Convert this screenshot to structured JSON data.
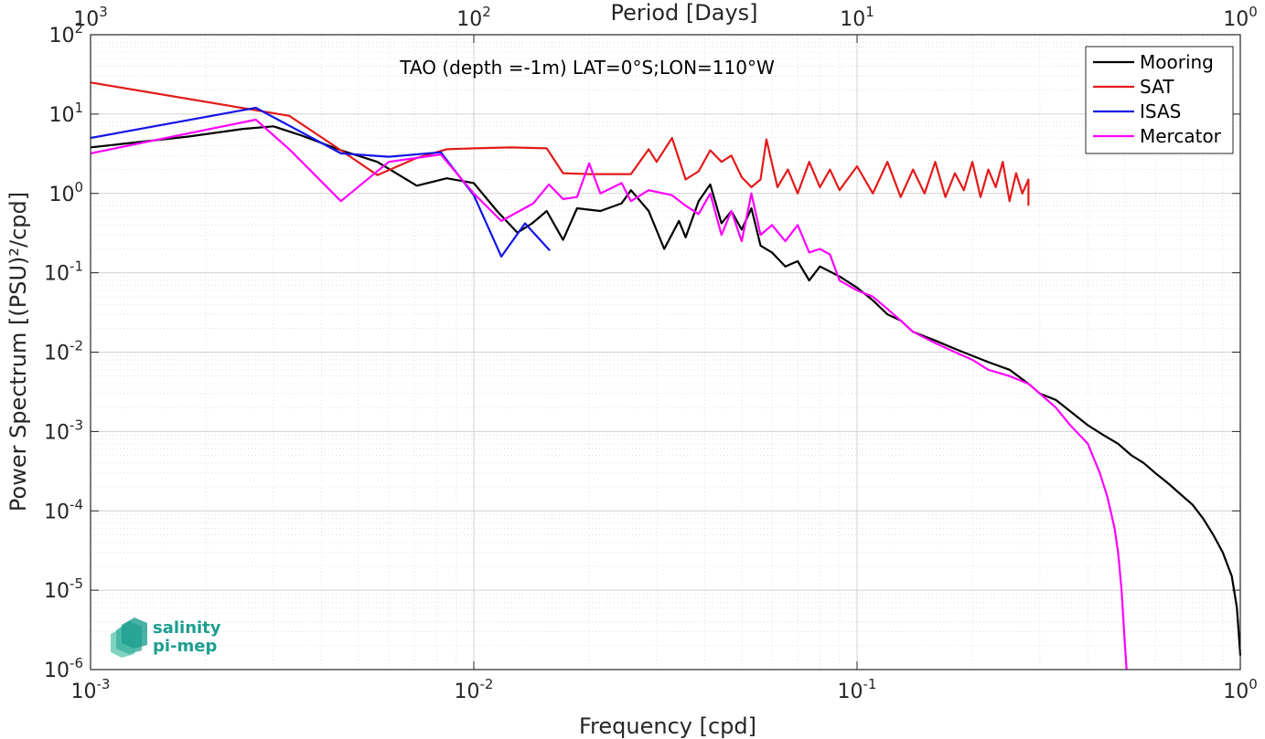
{
  "chart_data": {
    "type": "line",
    "annotation": "TAO (depth =-1m) LAT=0°S;LON=110°W",
    "xlabel": "Frequency [cpd]",
    "ylabel": "Power Spectrum [(PSU)²/cpd]",
    "x2label": "Period [Days]",
    "xscale": "log",
    "yscale": "log",
    "xlim": [
      0.001,
      1
    ],
    "ylim": [
      1e-06,
      100
    ],
    "x_ticks": [
      {
        "value": 0.001,
        "base": "10",
        "exp": "-3"
      },
      {
        "value": 0.01,
        "base": "10",
        "exp": "-2"
      },
      {
        "value": 0.1,
        "base": "10",
        "exp": "-1"
      },
      {
        "value": 1,
        "base": "10",
        "exp": "0"
      }
    ],
    "y_ticks": [
      {
        "value": 1e-06,
        "base": "10",
        "exp": "-6"
      },
      {
        "value": 1e-05,
        "base": "10",
        "exp": "-5"
      },
      {
        "value": 0.0001,
        "base": "10",
        "exp": "-4"
      },
      {
        "value": 0.001,
        "base": "10",
        "exp": "-3"
      },
      {
        "value": 0.01,
        "base": "10",
        "exp": "-2"
      },
      {
        "value": 0.1,
        "base": "10",
        "exp": "-1"
      },
      {
        "value": 1,
        "base": "10",
        "exp": "0"
      },
      {
        "value": 10,
        "base": "10",
        "exp": "1"
      },
      {
        "value": 100,
        "base": "10",
        "exp": "2"
      }
    ],
    "x2_ticks": [
      {
        "value": 1000,
        "base": "10",
        "exp": "3"
      },
      {
        "value": 100,
        "base": "10",
        "exp": "2"
      },
      {
        "value": 10,
        "base": "10",
        "exp": "1"
      },
      {
        "value": 1,
        "base": "10",
        "exp": "0"
      }
    ],
    "grid": true,
    "legend_position": "top-right",
    "series": [
      {
        "name": "Mooring",
        "color": "#000000",
        "points": [
          [
            0.001,
            3.8
          ],
          [
            0.0018,
            5.2
          ],
          [
            0.0025,
            6.5
          ],
          [
            0.003,
            7.0
          ],
          [
            0.0035,
            5.5
          ],
          [
            0.0045,
            3.5
          ],
          [
            0.0056,
            2.5
          ],
          [
            0.0071,
            1.25
          ],
          [
            0.0085,
            1.55
          ],
          [
            0.01,
            1.35
          ],
          [
            0.0115,
            0.6
          ],
          [
            0.013,
            0.32
          ],
          [
            0.0142,
            0.42
          ],
          [
            0.0155,
            0.6
          ],
          [
            0.0171,
            0.26
          ],
          [
            0.0186,
            0.65
          ],
          [
            0.0214,
            0.6
          ],
          [
            0.0243,
            0.75
          ],
          [
            0.0257,
            1.1
          ],
          [
            0.0286,
            0.6
          ],
          [
            0.0314,
            0.2
          ],
          [
            0.0343,
            0.45
          ],
          [
            0.0357,
            0.28
          ],
          [
            0.0386,
            0.8
          ],
          [
            0.0414,
            1.3
          ],
          [
            0.0443,
            0.42
          ],
          [
            0.047,
            0.6
          ],
          [
            0.05,
            0.35
          ],
          [
            0.053,
            0.65
          ],
          [
            0.056,
            0.22
          ],
          [
            0.06,
            0.18
          ],
          [
            0.065,
            0.12
          ],
          [
            0.07,
            0.14
          ],
          [
            0.075,
            0.08
          ],
          [
            0.08,
            0.12
          ],
          [
            0.09,
            0.09
          ],
          [
            0.1,
            0.065
          ],
          [
            0.11,
            0.045
          ],
          [
            0.12,
            0.03
          ],
          [
            0.13,
            0.025
          ],
          [
            0.14,
            0.018
          ],
          [
            0.16,
            0.014
          ],
          [
            0.18,
            0.011
          ],
          [
            0.2,
            0.009
          ],
          [
            0.22,
            0.0075
          ],
          [
            0.25,
            0.006
          ],
          [
            0.28,
            0.004
          ],
          [
            0.3,
            0.003
          ],
          [
            0.33,
            0.0025
          ],
          [
            0.36,
            0.0018
          ],
          [
            0.4,
            0.0012
          ],
          [
            0.44,
            0.0009
          ],
          [
            0.48,
            0.0007
          ],
          [
            0.52,
            0.0005
          ],
          [
            0.56,
            0.0004
          ],
          [
            0.6,
            0.0003
          ],
          [
            0.65,
            0.00022
          ],
          [
            0.7,
            0.00016
          ],
          [
            0.75,
            0.00012
          ],
          [
            0.8,
            8e-05
          ],
          [
            0.85,
            5e-05
          ],
          [
            0.9,
            3e-05
          ],
          [
            0.95,
            1.5e-05
          ],
          [
            0.98,
            6e-06
          ],
          [
            1.0,
            1.5e-06
          ]
        ]
      },
      {
        "name": "SAT",
        "color": "#e31a1a",
        "points": [
          [
            0.001,
            25
          ],
          [
            0.0033,
            9.5
          ],
          [
            0.0045,
            3.5
          ],
          [
            0.0056,
            1.7
          ],
          [
            0.0071,
            2.8
          ],
          [
            0.0085,
            3.6
          ],
          [
            0.01,
            3.7
          ],
          [
            0.0125,
            3.8
          ],
          [
            0.0155,
            3.7
          ],
          [
            0.0171,
            1.8
          ],
          [
            0.02,
            1.75
          ],
          [
            0.0243,
            1.75
          ],
          [
            0.0257,
            1.75
          ],
          [
            0.0286,
            3.6
          ],
          [
            0.03,
            2.5
          ],
          [
            0.0329,
            5.0
          ],
          [
            0.0357,
            1.5
          ],
          [
            0.0386,
            1.9
          ],
          [
            0.0414,
            3.5
          ],
          [
            0.0443,
            2.5
          ],
          [
            0.047,
            3.0
          ],
          [
            0.05,
            1.6
          ],
          [
            0.053,
            1.2
          ],
          [
            0.056,
            1.5
          ],
          [
            0.058,
            4.8
          ],
          [
            0.062,
            1.2
          ],
          [
            0.066,
            2.0
          ],
          [
            0.07,
            1.0
          ],
          [
            0.075,
            2.5
          ],
          [
            0.08,
            1.2
          ],
          [
            0.085,
            2.0
          ],
          [
            0.09,
            1.1
          ],
          [
            0.1,
            2.2
          ],
          [
            0.11,
            1.0
          ],
          [
            0.12,
            2.5
          ],
          [
            0.13,
            0.9
          ],
          [
            0.14,
            2.0
          ],
          [
            0.15,
            1.0
          ],
          [
            0.16,
            2.5
          ],
          [
            0.17,
            0.9
          ],
          [
            0.18,
            1.8
          ],
          [
            0.19,
            1.1
          ],
          [
            0.2,
            2.5
          ],
          [
            0.21,
            0.9
          ],
          [
            0.22,
            2.0
          ],
          [
            0.23,
            1.2
          ],
          [
            0.24,
            2.5
          ],
          [
            0.25,
            0.8
          ],
          [
            0.26,
            1.8
          ],
          [
            0.27,
            1.0
          ],
          [
            0.28,
            1.5
          ],
          [
            0.28,
            0.7
          ]
        ]
      },
      {
        "name": "ISAS",
        "color": "#1414e6",
        "points": [
          [
            0.001,
            5.0
          ],
          [
            0.0027,
            12.0
          ],
          [
            0.0045,
            3.2
          ],
          [
            0.006,
            2.9
          ],
          [
            0.0082,
            3.3
          ],
          [
            0.01,
            0.95
          ],
          [
            0.0118,
            0.16
          ],
          [
            0.0136,
            0.42
          ],
          [
            0.0158,
            0.19
          ]
        ]
      },
      {
        "name": "Mercator",
        "color": "#ff00ff",
        "points": [
          [
            0.001,
            3.2
          ],
          [
            0.0027,
            8.5
          ],
          [
            0.0033,
            3.6
          ],
          [
            0.0045,
            0.8
          ],
          [
            0.006,
            2.5
          ],
          [
            0.0082,
            3.1
          ],
          [
            0.01,
            1.0
          ],
          [
            0.0118,
            0.45
          ],
          [
            0.0143,
            0.75
          ],
          [
            0.0157,
            1.3
          ],
          [
            0.0171,
            0.85
          ],
          [
            0.0186,
            0.9
          ],
          [
            0.02,
            2.4
          ],
          [
            0.0214,
            1.0
          ],
          [
            0.0243,
            1.35
          ],
          [
            0.0257,
            0.8
          ],
          [
            0.0286,
            1.1
          ],
          [
            0.0329,
            0.95
          ],
          [
            0.0357,
            0.7
          ],
          [
            0.0386,
            0.55
          ],
          [
            0.0414,
            1.0
          ],
          [
            0.0443,
            0.3
          ],
          [
            0.047,
            0.6
          ],
          [
            0.05,
            0.25
          ],
          [
            0.053,
            1.0
          ],
          [
            0.056,
            0.3
          ],
          [
            0.06,
            0.4
          ],
          [
            0.065,
            0.25
          ],
          [
            0.07,
            0.4
          ],
          [
            0.075,
            0.18
          ],
          [
            0.08,
            0.2
          ],
          [
            0.085,
            0.17
          ],
          [
            0.09,
            0.08
          ],
          [
            0.1,
            0.06
          ],
          [
            0.11,
            0.05
          ],
          [
            0.12,
            0.035
          ],
          [
            0.13,
            0.025
          ],
          [
            0.14,
            0.018
          ],
          [
            0.16,
            0.013
          ],
          [
            0.18,
            0.01
          ],
          [
            0.2,
            0.008
          ],
          [
            0.22,
            0.006
          ],
          [
            0.25,
            0.005
          ],
          [
            0.28,
            0.004
          ],
          [
            0.3,
            0.003
          ],
          [
            0.33,
            0.002
          ],
          [
            0.36,
            0.0012
          ],
          [
            0.4,
            0.0007
          ],
          [
            0.43,
            0.0003
          ],
          [
            0.45,
            0.00015
          ],
          [
            0.47,
            6e-05
          ],
          [
            0.48,
            3e-05
          ],
          [
            0.49,
            1e-05
          ],
          [
            0.5,
            2e-06
          ],
          [
            0.505,
            1e-06
          ]
        ]
      }
    ]
  },
  "logo": {
    "line1": "salinity",
    "line2": "pi-mep",
    "color": "#1d9e8f"
  }
}
